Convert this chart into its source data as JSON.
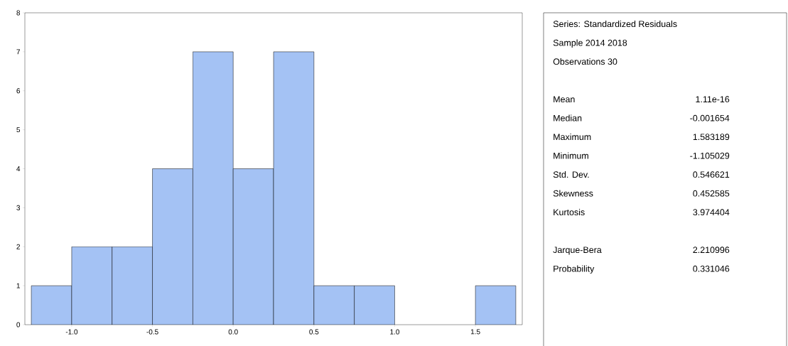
{
  "chart_data": [
    {
      "type": "histogram",
      "bins": [
        -1.25,
        -1.0,
        -0.75,
        -0.5,
        -0.25,
        0.0,
        0.25,
        0.5,
        0.75,
        1.0,
        1.25,
        1.5,
        1.75
      ],
      "values": [
        1,
        2,
        2,
        4,
        7,
        4,
        7,
        1,
        1,
        0,
        0,
        1
      ],
      "color": "#a4c2f4",
      "xlim": [
        -1.29,
        1.79
      ],
      "ylim": [
        0,
        8
      ],
      "xticks": [
        {
          "value": -1.0,
          "label": "-1.0"
        },
        {
          "value": -0.5,
          "label": "-0.5"
        },
        {
          "value": 0.0,
          "label": "0.0"
        },
        {
          "value": 0.5,
          "label": "0.5"
        },
        {
          "value": 1.0,
          "label": "1.0"
        },
        {
          "value": 1.5,
          "label": "1.5"
        }
      ],
      "yticks": [
        0,
        1,
        2,
        3,
        4,
        5,
        6,
        7,
        8
      ]
    },
    {
      "type": "other",
      "title": "Series: Standardized Residuals",
      "annotations": [
        "Sample 2014 2018",
        "Observations 30",
        "Mean",
        "1.11e-16",
        "Median",
        "-0.001654",
        "Maximum",
        "1.583189",
        "Minimum",
        "-1.105029",
        "Std. Dev.",
        "0.546621",
        "Skewness",
        "0.452585",
        "Kurtosis",
        "3.974404",
        "Jarque-Bera",
        "2.210996",
        "Probability",
        "0.331046"
      ]
    }
  ]
}
